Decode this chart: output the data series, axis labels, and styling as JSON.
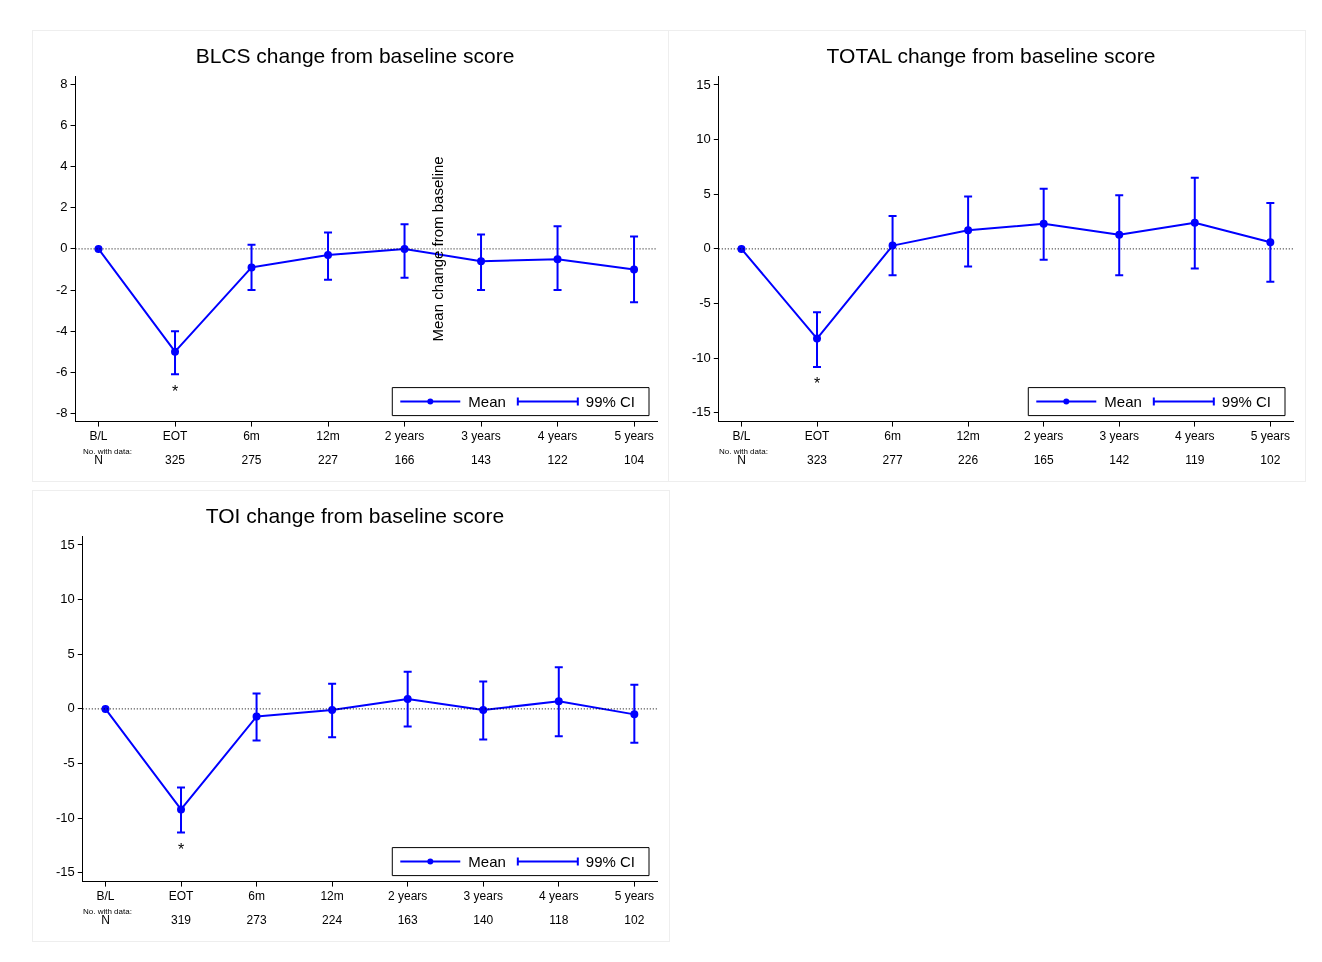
{
  "chart_data": [
    {
      "type": "line",
      "title": "BLCS change from baseline score",
      "ylabel": "Mean change from baseline",
      "categories": [
        "B/L",
        "EOT",
        "6m",
        "12m",
        "2 years",
        "3 years",
        "4 years",
        "5 years"
      ],
      "ylim": [
        -8.4,
        8.4
      ],
      "yticks": [
        -8,
        -6,
        -4,
        -2,
        0,
        2,
        4,
        6,
        8
      ],
      "series": [
        {
          "name": "Mean",
          "color": "#0000ff",
          "values": [
            0,
            -5.0,
            -0.9,
            -0.3,
            0,
            -0.6,
            -0.5,
            -1.0
          ],
          "errors": [
            null,
            [
              -6.1,
              -4.0
            ],
            [
              -2.0,
              0.2
            ],
            [
              -1.5,
              0.8
            ],
            [
              -1.4,
              1.2
            ],
            [
              -2.0,
              0.7
            ],
            [
              -2.0,
              1.1
            ],
            [
              -2.6,
              0.6
            ]
          ]
        }
      ],
      "ref_lines": [
        {
          "axis": "y",
          "value": 0,
          "line_style": "dotted",
          "color": "#000000"
        }
      ],
      "annotations": [
        "No. with data:",
        "99% CI",
        "*",
        "N",
        "325",
        "275",
        "227",
        "166",
        "143",
        "122",
        "104"
      ],
      "marker": "circle",
      "line_style": "solid",
      "legend": "bottom right",
      "grid": false
    },
    {
      "type": "line",
      "title": "TOTAL change from baseline score",
      "categories": [
        "B/L",
        "EOT",
        "6m",
        "12m",
        "2 years",
        "3 years",
        "4 years",
        "5 years"
      ],
      "ylim": [
        -15.8,
        15.8
      ],
      "yticks": [
        -15,
        -10,
        -5,
        0,
        5,
        10,
        15
      ],
      "series": [
        {
          "name": "Mean",
          "color": "#0000ff",
          "values": [
            0,
            -8.2,
            0.3,
            1.7,
            2.3,
            1.3,
            2.4,
            0.6
          ],
          "errors": [
            null,
            [
              -10.8,
              -5.8
            ],
            [
              -2.4,
              3.0
            ],
            [
              -1.6,
              4.8
            ],
            [
              -1.0,
              5.5
            ],
            [
              -2.4,
              4.9
            ],
            [
              -1.8,
              6.5
            ],
            [
              -3.0,
              4.2
            ]
          ]
        }
      ],
      "ref_lines": [
        {
          "axis": "y",
          "value": 0,
          "line_style": "dotted",
          "color": "#000000"
        }
      ],
      "annotations": [
        "No. with data:",
        "99% CI",
        "*",
        "N",
        "323",
        "277",
        "226",
        "165",
        "142",
        "119",
        "102"
      ],
      "marker": "circle",
      "line_style": "solid",
      "legend": "bottom right",
      "grid": false
    },
    {
      "type": "line",
      "title": "TOI change from baseline score",
      "categories": [
        "B/L",
        "EOT",
        "6m",
        "12m",
        "2 years",
        "3 years",
        "4 years",
        "5 years"
      ],
      "ylim": [
        -15.8,
        15.8
      ],
      "yticks": [
        -15,
        -10,
        -5,
        0,
        5,
        10,
        15
      ],
      "series": [
        {
          "name": "Mean",
          "color": "#0000ff",
          "values": [
            0,
            -9.2,
            -0.7,
            -0.1,
            0.9,
            -0.1,
            0.7,
            -0.5
          ],
          "errors": [
            null,
            [
              -11.3,
              -7.2
            ],
            [
              -2.9,
              1.4
            ],
            [
              -2.6,
              2.3
            ],
            [
              -1.6,
              3.4
            ],
            [
              -2.8,
              2.5
            ],
            [
              -2.5,
              3.8
            ],
            [
              -3.1,
              2.2
            ]
          ]
        }
      ],
      "ref_lines": [
        {
          "axis": "y",
          "value": 0,
          "line_style": "dotted",
          "color": "#000000"
        }
      ],
      "annotations": [
        "No. with data:",
        "99% CI",
        "*",
        "N",
        "319",
        "273",
        "224",
        "163",
        "140",
        "118",
        "102"
      ],
      "marker": "circle",
      "line_style": "solid",
      "legend": "bottom right",
      "grid": false
    }
  ]
}
